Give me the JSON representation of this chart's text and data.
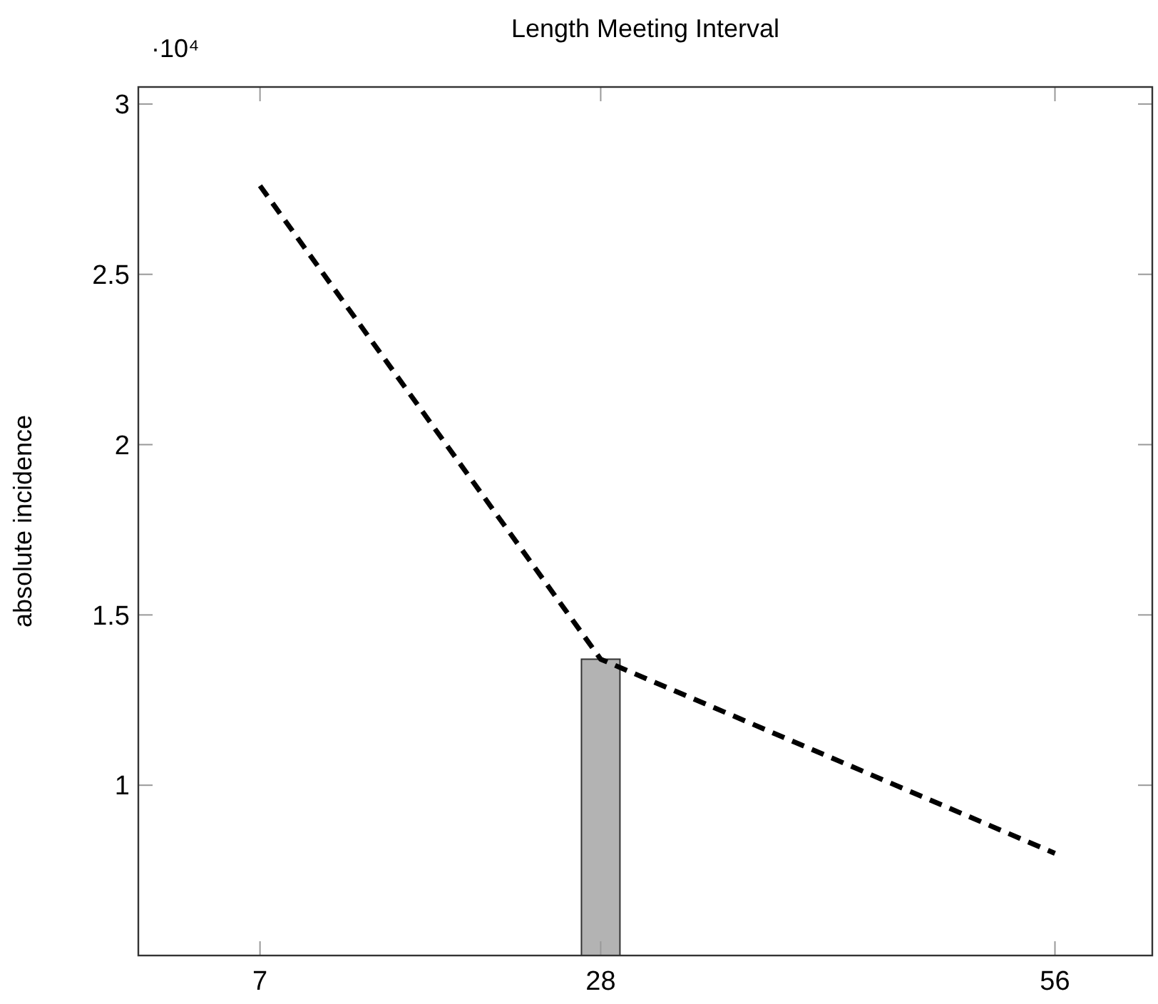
{
  "chart_data": {
    "type": "line",
    "title": "Length Meeting Interval",
    "ylabel": "absolute incidence",
    "annotations": [
      "·10⁴"
    ],
    "xlim": [
      -0.5,
      62
    ],
    "xticks": [
      7,
      28,
      56
    ],
    "ylim": [
      0.5,
      3.05
    ],
    "yticks": [
      1,
      1.5,
      2,
      2.5,
      3
    ],
    "grid": false,
    "series": [
      {
        "type": "bar",
        "color": "#b3b3b3",
        "x": [
          28
        ],
        "values": [
          1.37
        ]
      },
      {
        "color": "#000000",
        "line_style": "dashed",
        "marker": "none",
        "x": [
          7,
          28,
          56
        ],
        "values": [
          2.76,
          1.37,
          0.8
        ]
      }
    ]
  }
}
